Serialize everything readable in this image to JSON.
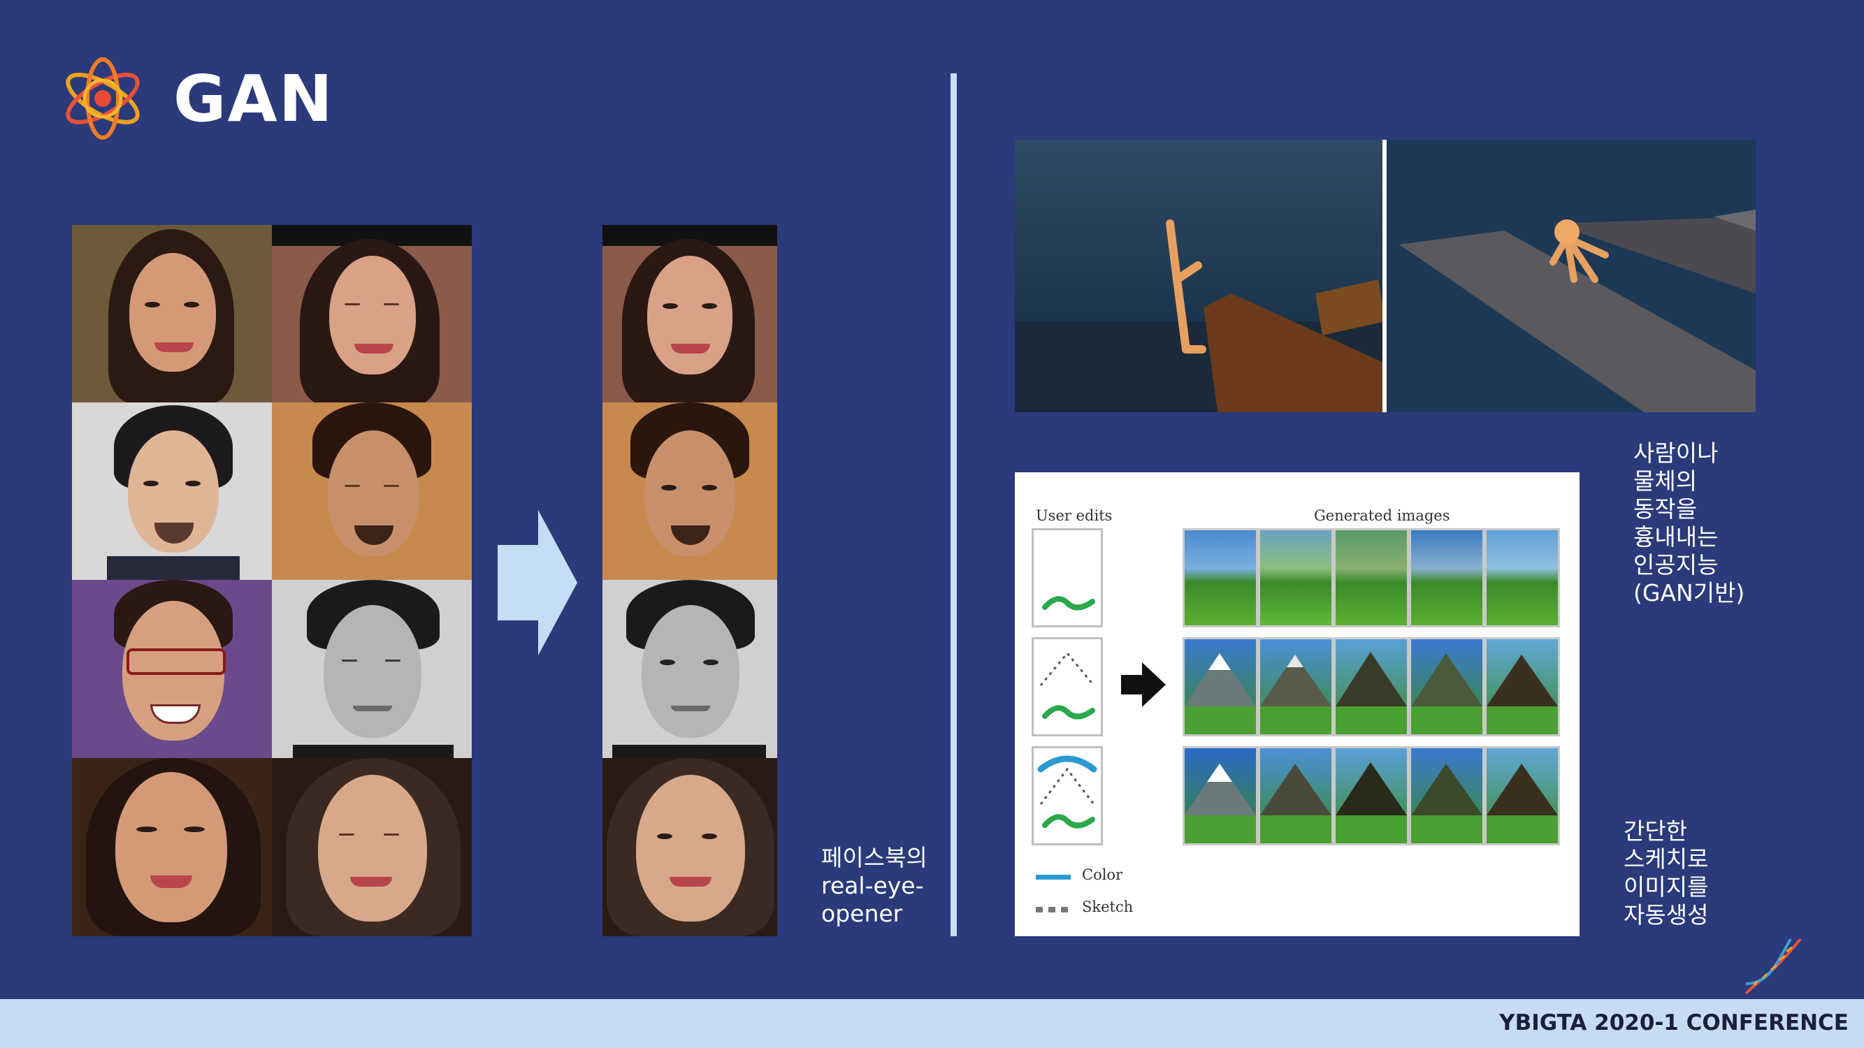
{
  "slide": {
    "title": "GAN",
    "logo_icon": "atom-icon",
    "dna_icon": "dna-helix-icon",
    "footer": "YBIGTA 2020-1 CONFERENCE"
  },
  "colors": {
    "background": "#2a3a7a",
    "footer_band": "#c7dcf2",
    "divider": "#c9def3",
    "arrow": "#c5def5"
  },
  "captions": {
    "eye_opener": "페이스북의\nreal-eye-\nopener",
    "motion": "사람이나\n물체의\n동작을\n흉내내는\n인공지능\n(GAN기반)",
    "sketch": "간단한\n스케치로\n이미지를\n자동생성"
  },
  "sketch_figure": {
    "user_edits_label": "User edits",
    "generated_label": "Generated images",
    "legend_color": "Color",
    "legend_sketch": "Sketch"
  }
}
